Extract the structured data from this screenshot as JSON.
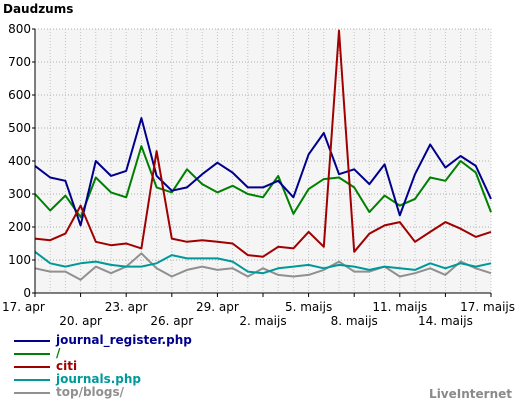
{
  "chart_data": {
    "type": "line",
    "title": "Daudzums",
    "ylim": [
      0,
      800
    ],
    "yticks": [
      0,
      100,
      200,
      300,
      400,
      500,
      600,
      700,
      800
    ],
    "grid": true,
    "x_labels_row1": [
      {
        "label": "17. apr",
        "index": 0
      },
      {
        "label": "23. apr",
        "index": 6
      },
      {
        "label": "29. apr",
        "index": 12
      },
      {
        "label": "5. maijs",
        "index": 18
      },
      {
        "label": "11. maijs",
        "index": 24
      },
      {
        "label": "17. maijs",
        "index": 30
      }
    ],
    "x_labels_row2": [
      {
        "label": "20. apr",
        "index": 3
      },
      {
        "label": "26. apr",
        "index": 9
      },
      {
        "label": "2. maijs",
        "index": 15
      },
      {
        "label": "8. maijs",
        "index": 21
      },
      {
        "label": "14. maijs",
        "index": 27
      }
    ],
    "series": [
      {
        "name": "journal_register.php",
        "color": "#00008b",
        "values": [
          385,
          350,
          340,
          205,
          400,
          355,
          370,
          530,
          355,
          310,
          320,
          360,
          395,
          365,
          320,
          320,
          340,
          290,
          420,
          485,
          360,
          375,
          330,
          390,
          235,
          360,
          450,
          380,
          415,
          385,
          285
        ]
      },
      {
        "name": "/",
        "color": "#008000",
        "values": [
          300,
          250,
          295,
          230,
          350,
          305,
          290,
          445,
          320,
          305,
          375,
          330,
          305,
          325,
          300,
          290,
          355,
          240,
          315,
          345,
          350,
          320,
          245,
          295,
          265,
          285,
          350,
          340,
          400,
          365,
          245
        ]
      },
      {
        "name": "citi",
        "color": "#a00000",
        "values": [
          165,
          160,
          180,
          265,
          155,
          145,
          150,
          135,
          430,
          165,
          155,
          160,
          155,
          150,
          115,
          110,
          140,
          135,
          185,
          140,
          795,
          125,
          180,
          205,
          215,
          155,
          185,
          215,
          195,
          170,
          185
        ]
      },
      {
        "name": "journals.php",
        "color": "#009999",
        "values": [
          125,
          90,
          80,
          90,
          95,
          85,
          80,
          80,
          90,
          115,
          105,
          105,
          105,
          95,
          65,
          60,
          75,
          80,
          85,
          75,
          85,
          80,
          70,
          80,
          75,
          70,
          90,
          75,
          90,
          80,
          90
        ]
      },
      {
        "name": "top/blogs/",
        "color": "#909090",
        "values": [
          75,
          65,
          65,
          40,
          80,
          60,
          80,
          120,
          75,
          50,
          70,
          80,
          70,
          75,
          50,
          75,
          55,
          50,
          55,
          70,
          95,
          65,
          65,
          80,
          50,
          60,
          75,
          55,
          95,
          75,
          60
        ]
      }
    ]
  },
  "brand": "LiveInternet"
}
